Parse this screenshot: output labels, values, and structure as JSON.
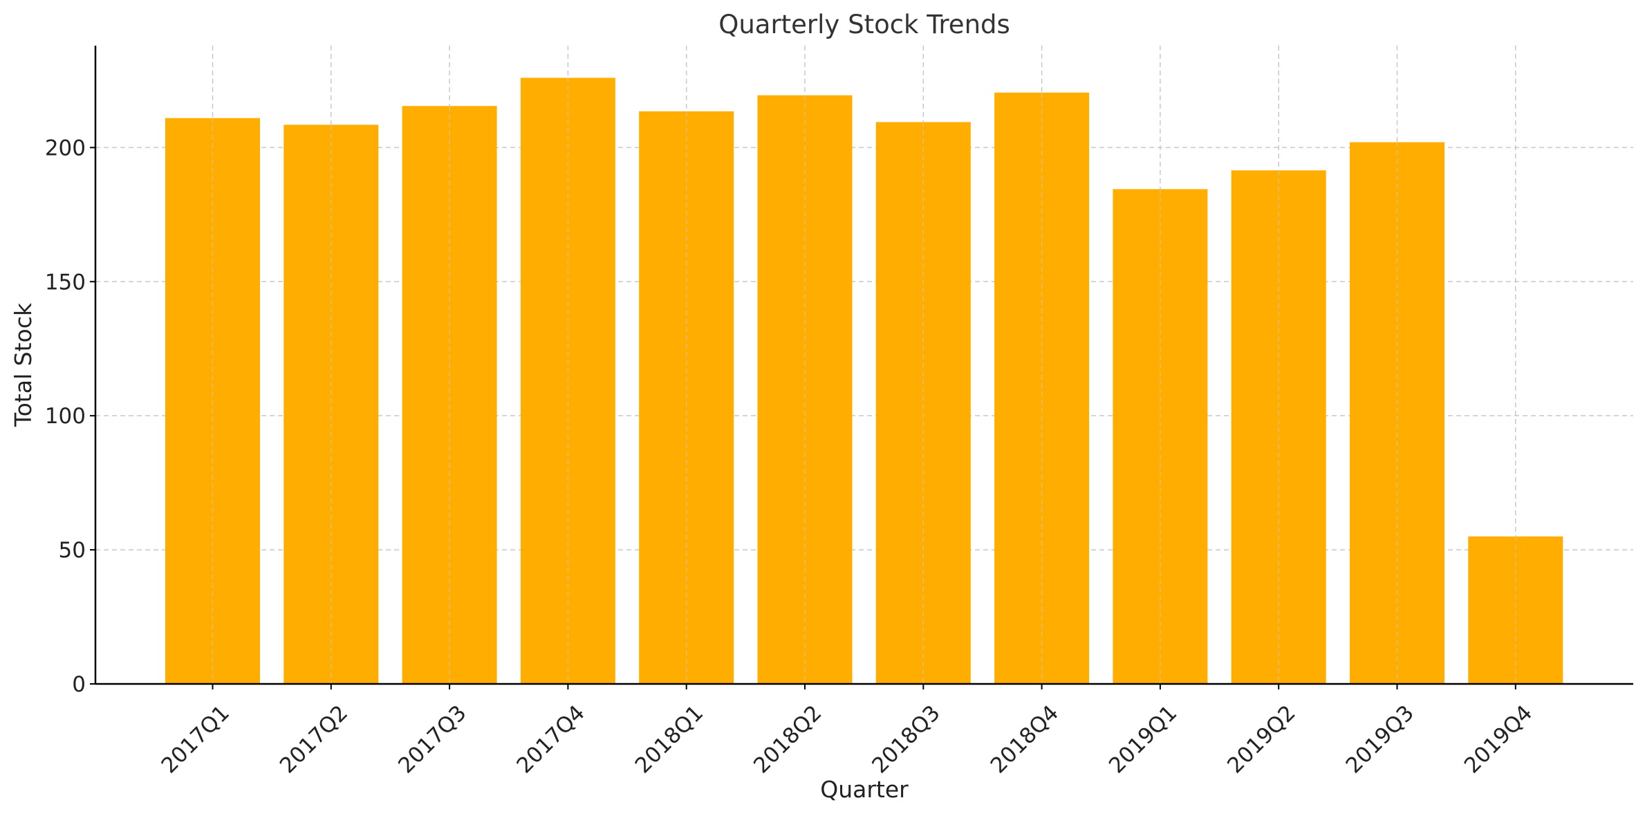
{
  "chart_data": {
    "type": "bar",
    "title": "Quarterly Stock Trends",
    "xlabel": "Quarter",
    "ylabel": "Total Stock",
    "categories": [
      "2017Q1",
      "2017Q2",
      "2017Q3",
      "2017Q4",
      "2018Q1",
      "2018Q2",
      "2018Q3",
      "2018Q4",
      "2019Q1",
      "2019Q2",
      "2019Q3",
      "2019Q4"
    ],
    "values": [
      211,
      208.5,
      215.5,
      226,
      213.5,
      219.5,
      209.5,
      220.5,
      184.5,
      191.5,
      202,
      55
    ],
    "ylim": [
      0,
      238
    ],
    "yticks": [
      0,
      50,
      100,
      150,
      200
    ],
    "grid": true,
    "bar_color": "#FFAE00"
  }
}
